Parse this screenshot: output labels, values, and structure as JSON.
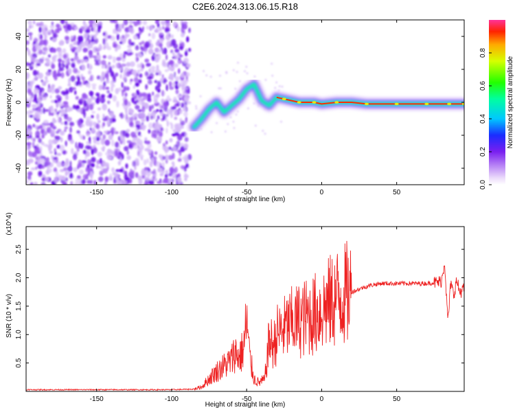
{
  "title": "C2E6.2024.313.06.15.R18",
  "chart_data": [
    {
      "type": "heatmap",
      "xlabel": "Height of straight line (km)",
      "ylabel": "Frequency (Hz)",
      "xlim": [
        -197,
        95
      ],
      "ylim": [
        -50,
        50
      ],
      "x_ticks": [
        -150,
        -100,
        -50,
        0,
        50
      ],
      "y_ticks": [
        -40,
        -20,
        0,
        20,
        40
      ],
      "colorbar": {
        "label": "Normalized spectral amplitude",
        "range": [
          0,
          1
        ],
        "ticks": [
          0.0,
          0.2,
          0.4,
          0.6,
          0.8
        ]
      },
      "ridge": {
        "x": [
          -85,
          -80,
          -75,
          -70,
          -65,
          -60,
          -55,
          -50,
          -45,
          -40,
          -35,
          -30,
          -25,
          -20,
          -15,
          -10,
          -5,
          0,
          10,
          20,
          30,
          40,
          50,
          60,
          70,
          80,
          85,
          90,
          95
        ],
        "y": [
          -15,
          -10,
          -4,
          0,
          -6,
          -2,
          2,
          8,
          11,
          1,
          -2,
          3,
          2,
          1,
          0,
          0,
          0,
          -1,
          0,
          0,
          -1,
          -1,
          -1,
          -1,
          -1,
          -1,
          -1,
          -1,
          -1
        ]
      }
    },
    {
      "type": "line",
      "xlabel": "Height of straight line (km)",
      "ylabel": "SNR (10 * v/v)",
      "y_multiplier": "(x10^4)",
      "xlim": [
        -197,
        95
      ],
      "ylim": [
        0,
        2.9
      ],
      "x_ticks": [
        -150,
        -100,
        -50,
        0,
        50
      ],
      "y_ticks": [
        0.5,
        1.0,
        1.5,
        2.0,
        2.5
      ],
      "color": "#ee2222",
      "series": [
        {
          "x": [
            -197,
            -150,
            -100,
            -85,
            -80,
            -75,
            -70,
            -65,
            -60,
            -58,
            -55,
            -52,
            -50,
            -48,
            -45,
            -42,
            -40,
            -38,
            -35,
            -32,
            -30,
            -25,
            -20,
            -15,
            -10,
            -5,
            0,
            5,
            10,
            15,
            20,
            25,
            30,
            35,
            40,
            50,
            60,
            70,
            78,
            80,
            82,
            84,
            85,
            86,
            88,
            90,
            92,
            95
          ],
          "y": [
            0.03,
            0.03,
            0.03,
            0.04,
            0.08,
            0.22,
            0.35,
            0.45,
            0.55,
            0.7,
            0.6,
            0.75,
            1.25,
            0.6,
            0.22,
            0.15,
            0.18,
            0.2,
            0.9,
            0.8,
            1.0,
            1.1,
            1.2,
            1.25,
            1.3,
            1.35,
            1.45,
            1.55,
            1.65,
            1.7,
            1.75,
            1.8,
            1.85,
            1.88,
            1.9,
            1.9,
            1.9,
            1.9,
            1.92,
            1.95,
            2.3,
            1.25,
            1.5,
            1.9,
            1.7,
            1.95,
            1.75,
            1.8
          ]
        }
      ]
    }
  ]
}
